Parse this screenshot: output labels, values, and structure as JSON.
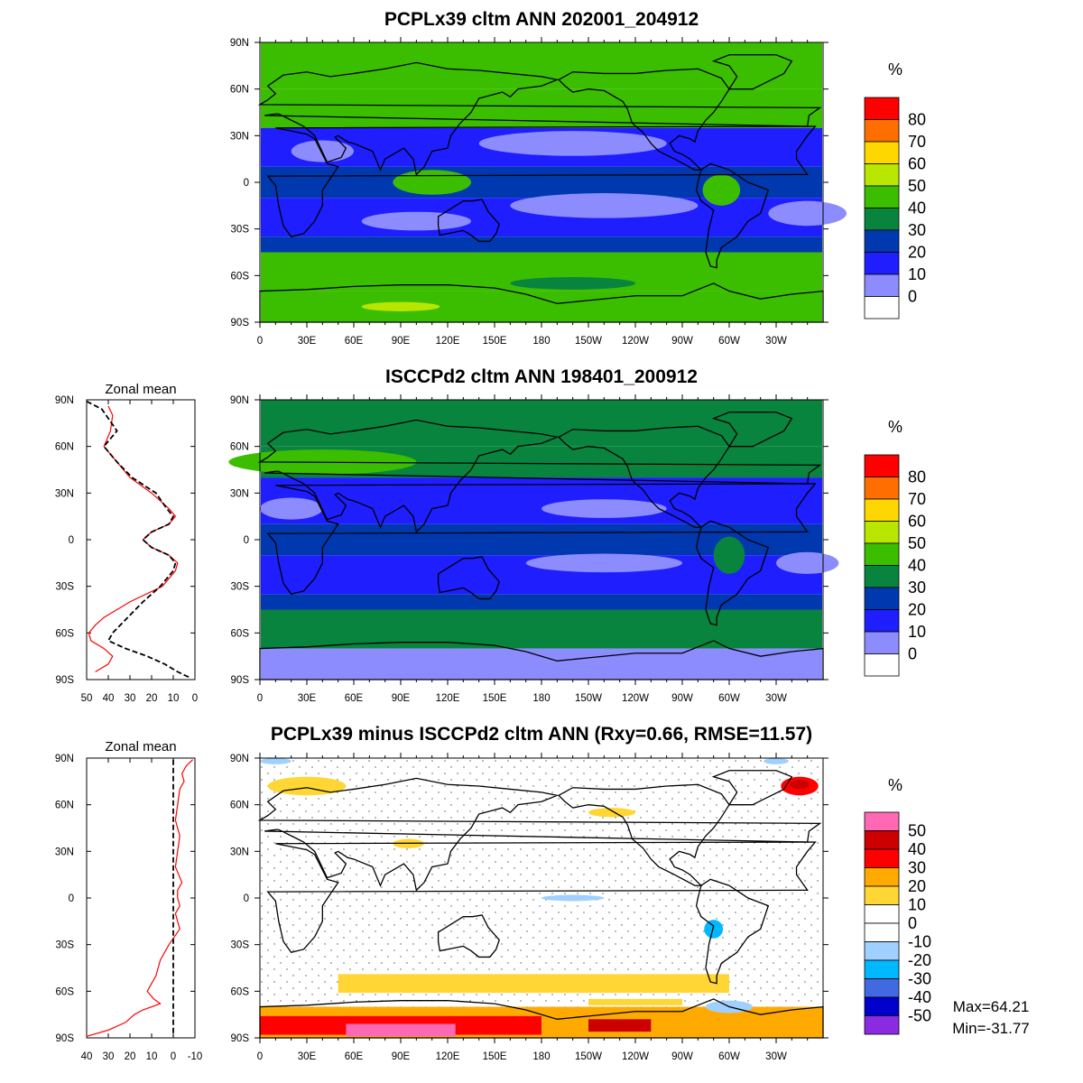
{
  "chart_data": [
    {
      "type": "heatmap",
      "title": "PCPLx39 cltm ANN 202001_204912",
      "xticks": [
        "0",
        "30E",
        "60E",
        "90E",
        "120E",
        "150E",
        "180",
        "150W",
        "120W",
        "90W",
        "60W",
        "30W"
      ],
      "yticks": [
        "90N",
        "60N",
        "30N",
        "0",
        "30S",
        "60S",
        "90S"
      ],
      "lat_bands": [
        {
          "lat": [
            60,
            90
          ],
          "value": 40
        },
        {
          "lat": [
            35,
            60
          ],
          "value": 40
        },
        {
          "lat": [
            10,
            35
          ],
          "value": 15
        },
        {
          "lat": [
            -10,
            10
          ],
          "value": 25
        },
        {
          "lat": [
            -35,
            -10
          ],
          "value": 10
        },
        {
          "lat": [
            -45,
            -35
          ],
          "value": 25
        },
        {
          "lat": [
            -70,
            -45
          ],
          "value": 45
        },
        {
          "lat": [
            -90,
            -70
          ],
          "value": 45
        }
      ],
      "colorbar": {
        "unit": "%",
        "labels": [
          "80",
          "70",
          "60",
          "50",
          "40",
          "30",
          "20",
          "10",
          "0"
        ],
        "colors": [
          "#ff0000",
          "#ff6e00",
          "#ffd700",
          "#b8e600",
          "#3cbe00",
          "#09843e",
          "#0038b0",
          "#1e1eff",
          "#8c8cff",
          "#ffffff"
        ]
      }
    },
    {
      "type": "heatmap",
      "title": "ISCCPd2 cltm ANN 198401_200912",
      "xticks": [
        "0",
        "30E",
        "60E",
        "90E",
        "120E",
        "150E",
        "180",
        "150W",
        "120W",
        "90W",
        "60W",
        "30W"
      ],
      "yticks": [
        "90N",
        "60N",
        "30N",
        "0",
        "30S",
        "60S",
        "90S"
      ],
      "lat_bands": [
        {
          "lat": [
            60,
            90
          ],
          "value": 35
        },
        {
          "lat": [
            40,
            60
          ],
          "value": 35
        },
        {
          "lat": [
            10,
            40
          ],
          "value": 15
        },
        {
          "lat": [
            -10,
            10
          ],
          "value": 20
        },
        {
          "lat": [
            -35,
            -10
          ],
          "value": 10
        },
        {
          "lat": [
            -45,
            -35
          ],
          "value": 20
        },
        {
          "lat": [
            -70,
            -45
          ],
          "value": 35
        },
        {
          "lat": [
            -90,
            -70
          ],
          "value": 5
        }
      ],
      "colorbar": {
        "unit": "%",
        "labels": [
          "80",
          "70",
          "60",
          "50",
          "40",
          "30",
          "20",
          "10",
          "0"
        ],
        "colors": [
          "#ff0000",
          "#ff6e00",
          "#ffd700",
          "#b8e600",
          "#3cbe00",
          "#09843e",
          "#0038b0",
          "#1e1eff",
          "#8c8cff",
          "#ffffff"
        ]
      },
      "zonal_mean": {
        "title": "Zonal mean",
        "xticks": [
          "50",
          "40",
          "30",
          "20",
          "10",
          "0"
        ],
        "xlim": [
          50,
          0
        ],
        "yticks": [
          "90N",
          "60N",
          "30N",
          "0",
          "30S",
          "60S",
          "90S"
        ],
        "series": [
          {
            "color": "#ff0000",
            "style": "solid",
            "lat": [
              86,
              80,
              70,
              60,
              50,
              40,
              30,
              20,
              15,
              10,
              5,
              0,
              -5,
              -10,
              -15,
              -20,
              -30,
              -40,
              -50,
              -55,
              -60,
              -65,
              -70,
              -75,
              -80,
              -85
            ],
            "values": [
              40,
              38,
              39,
              42,
              36,
              30,
              20,
              12,
              9,
              12,
              20,
              24,
              20,
              12,
              8,
              9,
              15,
              30,
              42,
              46,
              49,
              48,
              42,
              38,
              40,
              46
            ]
          },
          {
            "color": "#000000",
            "style": "dashed",
            "lat": [
              89,
              84,
              78,
              70,
              60,
              50,
              40,
              30,
              20,
              15,
              10,
              5,
              0,
              -5,
              -10,
              -15,
              -20,
              -30,
              -40,
              -50,
              -60,
              -65,
              -70,
              -75,
              -80,
              -85,
              -89
            ],
            "values": [
              50,
              43,
              40,
              36,
              42,
              36,
              29,
              18,
              13,
              10,
              12,
              20,
              24,
              20,
              12,
              9,
              10,
              16,
              24,
              31,
              38,
              40,
              32,
              22,
              14,
              8,
              2
            ]
          }
        ]
      }
    },
    {
      "type": "heatmap",
      "title": "PCPLx39 minus ISCCPd2 cltm ANN (Rxy=0.66, RMSE=11.57)",
      "xticks": [
        "0",
        "30E",
        "60E",
        "90E",
        "120E",
        "150E",
        "180",
        "150W",
        "120W",
        "90W",
        "60W",
        "30W"
      ],
      "yticks": [
        "90N",
        "60N",
        "30N",
        "0",
        "30S",
        "60S",
        "90S"
      ],
      "colorbar": {
        "unit": "%",
        "labels": [
          "50",
          "40",
          "30",
          "20",
          "10",
          "0",
          "-10",
          "-20",
          "-30",
          "-40",
          "-50"
        ],
        "colors": [
          "#ff69b4",
          "#cc0000",
          "#ff0000",
          "#ffaa00",
          "#ffd633",
          "#ffffff",
          "#ffffff",
          "#a0d0ff",
          "#00b8ff",
          "#4169e1",
          "#0000cd",
          "#8a2be2"
        ]
      },
      "max_label": "Max=64.21",
      "min_label": "Min=-31.77",
      "zonal_mean": {
        "title": "Zonal mean",
        "xticks": [
          "40",
          "30",
          "20",
          "10",
          "0",
          "-10"
        ],
        "xlim": [
          40,
          -10
        ],
        "yticks": [
          "90N",
          "60N",
          "30N",
          "0",
          "30S",
          "60S",
          "90S"
        ],
        "series": [
          {
            "color": "#ff0000",
            "style": "solid",
            "lat": [
              89,
              85,
              80,
              75,
              70,
              60,
              50,
              40,
              30,
              20,
              10,
              5,
              0,
              -5,
              -10,
              -20,
              -30,
              -40,
              -50,
              -55,
              -60,
              -65,
              -68,
              -72,
              -75,
              -80,
              -85,
              -89
            ],
            "values": [
              -9,
              -6,
              -4,
              -5,
              -3,
              -2,
              -1,
              -3,
              -2,
              -1,
              -4,
              -2,
              -2,
              -3,
              -1,
              -3,
              2,
              6,
              8,
              10,
              12,
              9,
              6,
              14,
              18,
              22,
              30,
              40
            ]
          },
          {
            "color": "#000000",
            "style": "dashed",
            "lat": [
              89,
              -89
            ],
            "values": [
              0,
              0
            ]
          }
        ]
      }
    }
  ]
}
